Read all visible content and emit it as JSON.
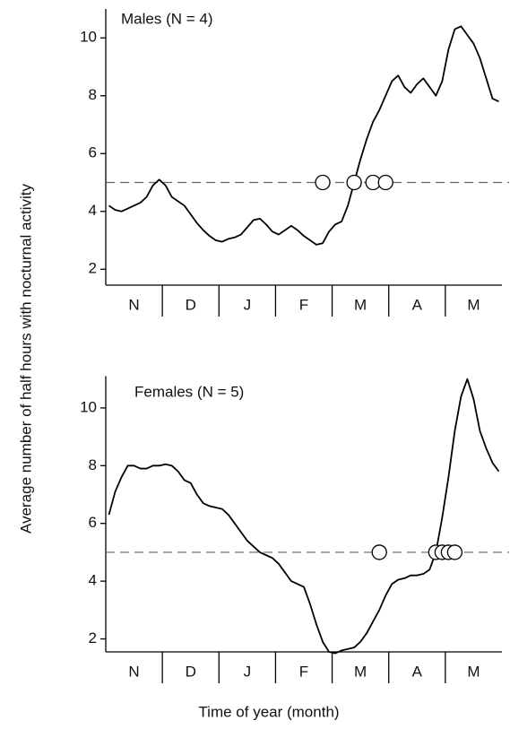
{
  "chart_data": [
    {
      "type": "line",
      "title": "Males (N = 4)",
      "ylabel": "Average number of half hours with nocturnal activity",
      "categories": [
        null,
        null,
        null,
        null,
        "N",
        null,
        null,
        null,
        null,
        null,
        null,
        null,
        null,
        "D",
        null,
        null,
        null,
        null,
        null,
        null,
        null,
        null,
        "J",
        null,
        null,
        null,
        null,
        null,
        null,
        null,
        null,
        "F",
        null,
        null,
        null,
        null,
        null,
        null,
        null,
        null,
        "M",
        null,
        null,
        null,
        null,
        null,
        null,
        null,
        null,
        "A",
        null,
        null,
        null,
        null,
        null,
        null,
        null,
        null,
        "M",
        null,
        null,
        null,
        null
      ],
      "series": [
        {
          "color": "#000000",
          "values": [
            4.2,
            4.05,
            4.0,
            4.1,
            4.2,
            4.3,
            4.5,
            4.9,
            5.1,
            4.9,
            4.5,
            4.35,
            4.2,
            3.9,
            3.6,
            3.35,
            3.15,
            3.0,
            2.95,
            3.05,
            3.1,
            3.2,
            3.45,
            3.7,
            3.75,
            3.55,
            3.3,
            3.2,
            3.35,
            3.5,
            3.35,
            3.15,
            3.0,
            2.85,
            2.9,
            3.3,
            3.55,
            3.65,
            4.2,
            5.0,
            5.8,
            6.5,
            7.1,
            7.5,
            8.0,
            8.5,
            8.7,
            8.3,
            8.1,
            8.4,
            8.6,
            8.3,
            8.0,
            8.5,
            9.6,
            10.3,
            10.4,
            10.1,
            9.8,
            9.3,
            8.6,
            7.9,
            7.8
          ]
        },
        {
          "marker": "circle",
          "values": [
            null,
            null,
            null,
            null,
            null,
            null,
            null,
            null,
            null,
            null,
            null,
            null,
            null,
            null,
            null,
            null,
            null,
            null,
            null,
            null,
            null,
            null,
            null,
            null,
            null,
            null,
            null,
            null,
            null,
            null,
            null,
            null,
            null,
            null,
            5,
            null,
            null,
            null,
            null,
            5,
            null,
            null,
            5,
            null,
            5,
            null,
            null,
            null,
            null,
            null,
            null,
            null,
            null,
            null,
            null,
            null,
            null,
            null,
            null,
            null,
            null,
            null,
            null
          ]
        }
      ],
      "hline": 5,
      "hline_style": "dashed",
      "ylim": [
        1.45,
        11
      ],
      "yticks": [
        2,
        4,
        6,
        8,
        10
      ]
    },
    {
      "type": "line",
      "title": "Females (N = 5)",
      "xlabel": "Time of year (month)",
      "categories": [
        null,
        null,
        null,
        null,
        "N",
        null,
        null,
        null,
        null,
        null,
        null,
        null,
        null,
        "D",
        null,
        null,
        null,
        null,
        null,
        null,
        null,
        null,
        "J",
        null,
        null,
        null,
        null,
        null,
        null,
        null,
        null,
        "F",
        null,
        null,
        null,
        null,
        null,
        null,
        null,
        null,
        "M",
        null,
        null,
        null,
        null,
        null,
        null,
        null,
        null,
        "A",
        null,
        null,
        null,
        null,
        null,
        null,
        null,
        null,
        "M",
        null,
        null,
        null,
        null
      ],
      "series": [
        {
          "color": "#000000",
          "values": [
            6.3,
            7.1,
            7.6,
            8.0,
            8.0,
            7.9,
            7.9,
            8.0,
            8.0,
            8.05,
            8.0,
            7.8,
            7.5,
            7.4,
            7.0,
            6.7,
            6.6,
            6.55,
            6.5,
            6.3,
            6.0,
            5.7,
            5.4,
            5.2,
            5.0,
            4.9,
            4.8,
            4.6,
            4.3,
            4.0,
            3.9,
            3.8,
            3.2,
            2.5,
            1.9,
            1.55,
            1.5,
            1.6,
            1.65,
            1.7,
            1.9,
            2.2,
            2.6,
            3.0,
            3.5,
            3.9,
            4.05,
            4.1,
            4.2,
            4.2,
            4.25,
            4.4,
            5.0,
            6.2,
            7.6,
            9.2,
            10.4,
            11.0,
            10.3,
            9.2,
            8.6,
            8.1,
            7.8
          ]
        },
        {
          "marker": "circle",
          "values": [
            null,
            null,
            null,
            null,
            null,
            null,
            null,
            null,
            null,
            null,
            null,
            null,
            null,
            null,
            null,
            null,
            null,
            null,
            null,
            null,
            null,
            null,
            null,
            null,
            null,
            null,
            null,
            null,
            null,
            null,
            null,
            null,
            null,
            null,
            null,
            null,
            null,
            null,
            null,
            null,
            null,
            null,
            null,
            5,
            null,
            null,
            null,
            null,
            null,
            null,
            null,
            null,
            5,
            5,
            5,
            5,
            null,
            null,
            null,
            null,
            null,
            null,
            null
          ]
        }
      ],
      "hline": 5,
      "hline_style": "dashed",
      "ylim": [
        1.55,
        11.1
      ],
      "yticks": [
        2,
        4,
        6,
        8,
        10
      ]
    }
  ]
}
